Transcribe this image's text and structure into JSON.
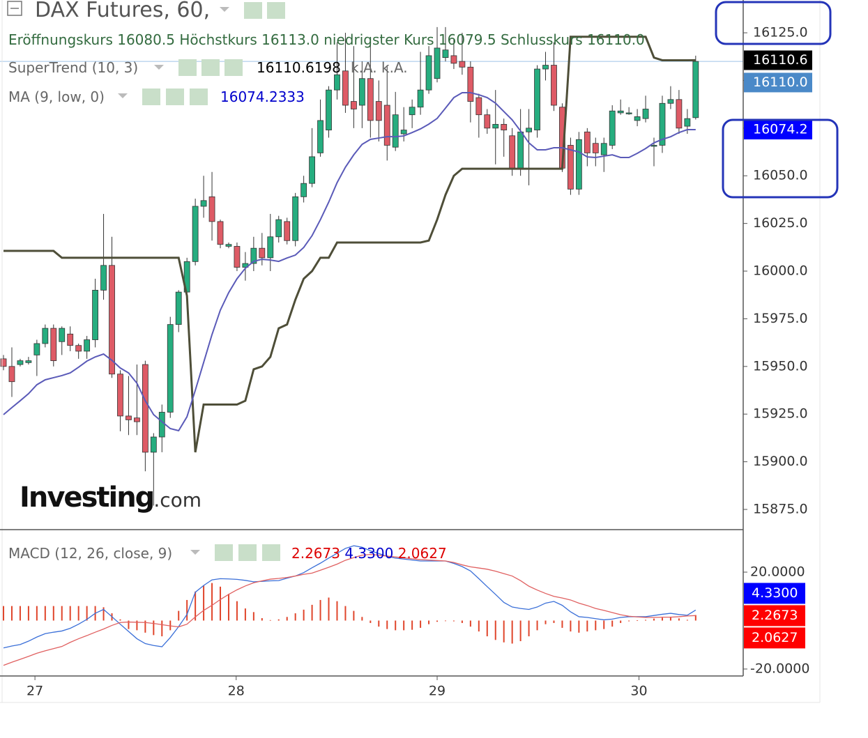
{
  "chart_data": [
    {
      "type": "candlestick",
      "title": "DAX Futures, 60,",
      "ohlc_legend": {
        "names": [
          "Eröffnungskurs",
          "Höchstkurs",
          "niedrigster Kurs",
          "Schlusskurs"
        ],
        "values": [
          "16080.5",
          "16113.0",
          "16079.5",
          "16110.0"
        ]
      },
      "up_color": "#26ad7f",
      "down_color": "#de5b66",
      "wick_color": "#333333",
      "open": [
        15954,
        15950,
        15951,
        15952,
        15956,
        15962,
        15970,
        15963,
        15967,
        15961,
        15958,
        15964,
        15990,
        16003,
        15946,
        15924,
        15923,
        15951,
        15905,
        15913,
        15926,
        15972,
        15989,
        16005,
        16034,
        16039,
        16026,
        16013,
        16013,
        16002,
        16004,
        16012,
        16007,
        16018,
        16026,
        16016,
        16039,
        16046,
        16062,
        16074,
        16095,
        16105,
        16089,
        16087,
        16101,
        16089,
        16087,
        16065,
        16072,
        16082,
        16086,
        16095,
        16101,
        16112,
        16113,
        16110,
        16107,
        16091,
        16082,
        16075,
        16077,
        16071,
        16054,
        16073,
        16074,
        16106,
        16108,
        16086,
        16066,
        16043,
        16073,
        16067,
        16061,
        16066,
        16083,
        16083,
        16079,
        16080,
        16066,
        16066,
        16088,
        16090,
        16076,
        16080.5
      ],
      "high": [
        15956,
        15960,
        15954,
        15955,
        15964,
        15972,
        15972,
        15971,
        15971,
        15962,
        15966,
        15996,
        16030,
        16018,
        15948,
        15945,
        15951,
        15953,
        15915,
        15930,
        15976,
        15990,
        16007,
        16038,
        16050,
        16052,
        16027,
        16015,
        16015,
        16010,
        16018,
        16020,
        16030,
        16029,
        16028,
        16041,
        16050,
        16075,
        16090,
        16097,
        16120,
        16125,
        16118,
        16110,
        16120,
        16100,
        16108,
        16094,
        16086,
        16090,
        16115,
        16118,
        16128,
        16128,
        16122,
        16125,
        16110,
        16093,
        16085,
        16095,
        16080,
        16075,
        16085,
        16085,
        16108,
        16115,
        16120,
        16088,
        16070,
        16073,
        16075,
        16070,
        16070,
        16087,
        16090,
        16086,
        16085,
        16092,
        16070,
        16092,
        16097,
        16095,
        16085,
        16113
      ],
      "low": [
        15948,
        15934,
        15950,
        15951,
        15945,
        15960,
        15950,
        15956,
        15958,
        15954,
        15954,
        15960,
        15985,
        15944,
        15916,
        15914,
        15914,
        15895,
        15877,
        15905,
        15923,
        15968,
        15987,
        16003,
        16028,
        16016,
        16012,
        16012,
        16000,
        15995,
        16000,
        16003,
        16000,
        16015,
        16014,
        16013,
        16036,
        16044,
        16060,
        16070,
        16090,
        16083,
        16075,
        16075,
        16070,
        16068,
        16058,
        16063,
        16068,
        16075,
        16082,
        16093,
        16099,
        16110,
        16106,
        16103,
        16078,
        16070,
        16072,
        16056,
        16060,
        16050,
        16050,
        16045,
        16070,
        16100,
        16084,
        16052,
        16040,
        16040,
        16055,
        16055,
        16052,
        16064,
        16082,
        16082,
        16076,
        16078,
        16055,
        16062,
        16085,
        16072,
        16072,
        16079.5
      ],
      "close": [
        15950,
        15942,
        15953,
        15953,
        15962,
        15970,
        15953,
        15970,
        15961,
        15958,
        15964,
        15990,
        16003,
        15946,
        15924,
        15922,
        15921,
        15905,
        15913,
        15926,
        15972,
        15989,
        16005,
        16034,
        16037,
        16026,
        16014,
        16014,
        16002,
        16004,
        16012,
        16007,
        16018,
        16027,
        16016,
        16039,
        16046,
        16060,
        16079,
        16095,
        16103,
        16087,
        16085,
        16101,
        16079,
        16079,
        16066,
        16082,
        16074,
        16086,
        16095,
        16113,
        16117,
        16116,
        16109,
        16107,
        16089,
        16082,
        16075,
        16077,
        16074,
        16054,
        16073,
        16075,
        16106,
        16108,
        16087,
        16054,
        16043,
        16069,
        16062,
        16062,
        16067,
        16084,
        16084,
        16083,
        16081,
        16085,
        16066,
        16088,
        16090,
        16075,
        16080,
        16110
      ],
      "series": [
        {
          "name": "SuperTrend (10, 3)",
          "color": "#4e4e38",
          "extra_labels": [
            "k.A.",
            "k.A."
          ],
          "values": [
            16010.6,
            16010.6,
            16010.6,
            16010.6,
            16010.6,
            16010.6,
            16010.6,
            16007,
            16007,
            16007,
            16007,
            16007,
            16007,
            16007,
            16007,
            16007,
            16007,
            16007,
            16007,
            16007,
            16007,
            16007,
            15987,
            15905,
            15930,
            15930,
            15930,
            15930,
            15930,
            15932,
            15948.5,
            15950,
            15955,
            15970,
            15972,
            15985,
            15996,
            16000,
            16007,
            16007,
            16015,
            16015,
            16015,
            16015,
            16015,
            16015,
            16015,
            16015,
            16015,
            16015,
            16015,
            16016,
            16027,
            16040,
            16050,
            16053.7,
            16053.7,
            16053.7,
            16053.7,
            16053.7,
            16053.7,
            16053.7,
            16053.7,
            16053.7,
            16053.7,
            16053.7,
            16053.7,
            16053.7,
            16122.9,
            16122.9,
            16122.9,
            16122.9,
            16122.9,
            16122.9,
            16122.9,
            16122.9,
            16122.9,
            16122.9,
            16112,
            16110.6,
            16110.6,
            16110.6,
            16110.6,
            16110.6198
          ]
        },
        {
          "name": "MA (9, low, 0)",
          "color": "#5a5ab8",
          "values": [
            15924.7,
            15928.4,
            15932.0,
            15935.7,
            15940.4,
            15943.0,
            15944.1,
            15945.2,
            15946.6,
            15949.6,
            15952.8,
            15955.0,
            15956.5,
            15953.2,
            15949.2,
            15946.6,
            15941.2,
            15932.0,
            15924.7,
            15921.0,
            15917.4,
            15916.3,
            15923.6,
            15937.5,
            15952.1,
            15966.7,
            15979.5,
            15988.7,
            15996.0,
            16001.5,
            16005.1,
            16006.2,
            16005.8,
            16005.1,
            16006.9,
            16008.4,
            16012.4,
            16018.6,
            16027.0,
            16036.2,
            16046.4,
            16054.5,
            16061.0,
            16066.5,
            16069.1,
            16069.8,
            16070.5,
            16070.5,
            16070.9,
            16072.7,
            16074.6,
            16077.1,
            16080.1,
            16085.5,
            16091.0,
            16093.6,
            16093.6,
            16092.5,
            16091.0,
            16088.1,
            16083.7,
            16079.3,
            16073.5,
            16067.3,
            16063.6,
            16063.6,
            16064.7,
            16064.7,
            16063.6,
            16062.5,
            16059.9,
            16059.6,
            16060.3,
            16061.0,
            16059.6,
            16059.6,
            16061.8,
            16064.3,
            16067.3,
            16069.1,
            16070.5,
            16072.7,
            16074.2,
            16074.2333
          ]
        }
      ],
      "price_tags": [
        {
          "value": 16110.6,
          "label": "16110.6",
          "color": "#000000"
        },
        {
          "value": 16110.0,
          "label": "16110.0",
          "color": "#4a89c8"
        },
        {
          "value": 16074.2,
          "label": "16074.2",
          "color": "#0000ff"
        }
      ],
      "last_price_color": "#9ec3e6",
      "xlim": [
        -0.42,
        88.7
      ],
      "ylim": [
        15864.4,
        16142.2
      ],
      "yticks": [
        {
          "value": 16125,
          "label": "16125.0"
        },
        {
          "value": 16100,
          "label": "16100.0"
        },
        {
          "value": 16075,
          "label": "16075.0"
        },
        {
          "value": 16050,
          "label": "16050.0"
        },
        {
          "value": 16025,
          "label": "16025.0"
        },
        {
          "value": 16000,
          "label": "16000.0"
        },
        {
          "value": 15975,
          "label": "15975.0"
        },
        {
          "value": 15950,
          "label": "15950.0"
        },
        {
          "value": 15925,
          "label": "15925.0"
        },
        {
          "value": 15900,
          "label": "15900.0"
        },
        {
          "value": 15875,
          "label": "15875.0"
        }
      ],
      "grid": false,
      "watermark": [
        "Investing",
        ".com"
      ]
    },
    {
      "type": "macd",
      "title": "MACD (12, 26, close, 9)",
      "series": [
        {
          "style": "bar",
          "color": "#e0452b",
          "values": [
            6,
            6,
            6,
            6,
            6,
            6,
            6,
            6,
            6,
            6,
            6,
            6,
            5.5,
            3,
            0.5,
            -3.5,
            -4,
            -5,
            -6,
            -6.5,
            -4,
            4,
            8.5,
            12,
            14.5,
            15.5,
            14,
            11,
            8,
            5,
            3.5,
            1,
            0.2,
            0.5,
            1.5,
            3,
            4.5,
            6.5,
            8.5,
            9.5,
            8,
            6,
            4,
            1.5,
            -1,
            -2.5,
            -3.5,
            -4,
            -4,
            -3.8,
            -3,
            -1.5,
            -0.5,
            0,
            -0.3,
            -1,
            -2.5,
            -4.5,
            -6.5,
            -8,
            -9,
            -9.5,
            -8.5,
            -6.5,
            -4,
            -1.5,
            -1,
            -3,
            -4.5,
            -5,
            -4.5,
            -4,
            -3.5,
            -2.5,
            -1,
            -0.3,
            0.1,
            0.3,
            0.8,
            1.2,
            1.6,
            0.9,
            0.3,
            2.2673
          ]
        },
        {
          "style": "line",
          "color": "#3a6fd8",
          "last_label": "4.3300",
          "tag_color": "#0000ff",
          "values": [
            -11.3,
            -10.5,
            -9.9,
            -8.5,
            -6.8,
            -5.4,
            -4.8,
            -4.3,
            -3.2,
            -1.5,
            0.5,
            3.0,
            4.6,
            1.6,
            -1.5,
            -4.5,
            -7.5,
            -9.5,
            -10.3,
            -10.8,
            -7.0,
            -2.5,
            2.5,
            11.7,
            14.5,
            16.8,
            17.3,
            17.2,
            17.0,
            16.6,
            16.0,
            16.2,
            16.4,
            16.5,
            17.5,
            18.4,
            19.8,
            21.8,
            23.7,
            25.8,
            27.8,
            29.8,
            30.9,
            30.3,
            28.8,
            27.7,
            26.5,
            25.8,
            25.4,
            25.0,
            24.6,
            24.6,
            24.6,
            24.6,
            23.6,
            22.3,
            20.5,
            17.3,
            14.0,
            10.8,
            7.5,
            5.6,
            5.0,
            4.6,
            5.6,
            7.2,
            7.9,
            6.3,
            3.6,
            1.6,
            1.3,
            0.8,
            0.3,
            0.6,
            1.3,
            1.6,
            1.6,
            1.6,
            2.1,
            2.6,
            3.0,
            2.5,
            2.2,
            4.33
          ]
        },
        {
          "style": "line",
          "color": "#e06060",
          "tag_color": "#ff0000",
          "values": [
            -18.5,
            -17.2,
            -16.0,
            -14.8,
            -13.5,
            -12.5,
            -11.6,
            -10.7,
            -9.0,
            -7.5,
            -6.2,
            -4.8,
            -3.5,
            -2.0,
            -0.8,
            -0.6,
            -0.7,
            -0.8,
            -1.2,
            -1.7,
            -2.2,
            -2.6,
            -1.5,
            1.5,
            4.2,
            6.3,
            8.7,
            10.8,
            12.7,
            14.3,
            15.6,
            16.4,
            17.1,
            17.4,
            17.8,
            18.4,
            19.1,
            19.6,
            20.8,
            22.0,
            23.3,
            24.9,
            26.0,
            27.0,
            27.3,
            27.0,
            26.6,
            26.3,
            25.9,
            25.5,
            25.2,
            25.0,
            24.8,
            24.6,
            24.0,
            23.0,
            22.2,
            21.7,
            21.2,
            20.4,
            19.4,
            18.4,
            16.5,
            14.2,
            12.6,
            11.2,
            10.0,
            9.3,
            8.5,
            7.2,
            6.2,
            5.0,
            4.2,
            3.3,
            2.4,
            1.8,
            1.5,
            1.3,
            1.3,
            1.4,
            1.4,
            1.6,
            1.9,
            2.0627
          ]
        }
      ],
      "hist_tag_color": "#ff0000",
      "xlim": [
        -0.42,
        88.7
      ],
      "xticks": [
        {
          "value": 3.77,
          "label": "27"
        },
        {
          "value": 27.9,
          "label": "28"
        },
        {
          "value": 52.0,
          "label": "29"
        },
        {
          "value": 76.2,
          "label": "30"
        }
      ],
      "ylim": [
        -22.88,
        37.55
      ],
      "yticks": [
        {
          "value": 20,
          "label": "20.0000"
        },
        {
          "value": -20,
          "label": "-20.0000"
        }
      ]
    }
  ]
}
